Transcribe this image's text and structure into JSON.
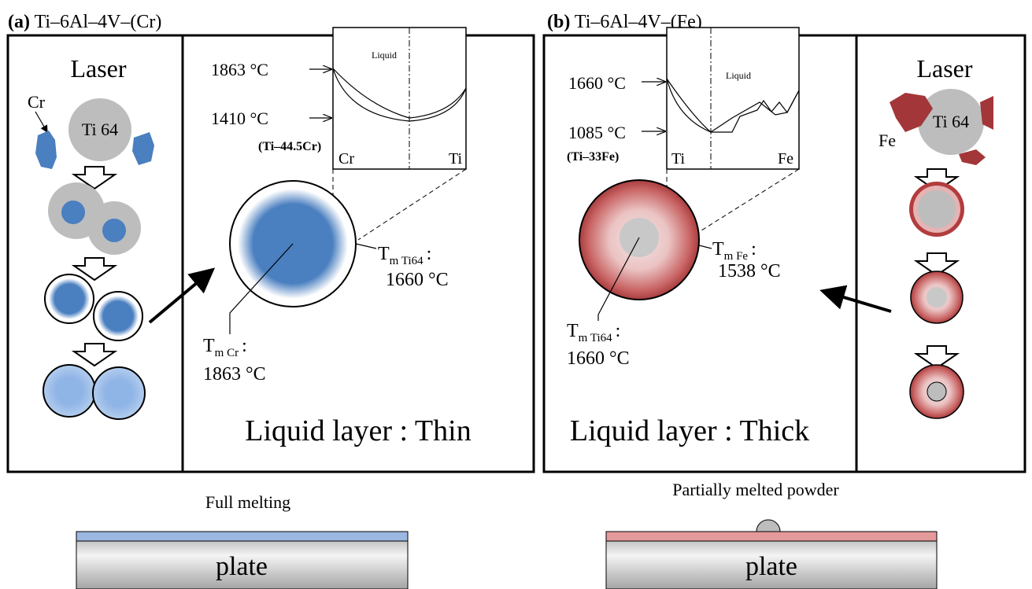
{
  "panel_a": {
    "label": "(a)",
    "title": "Ti–6Al–4V–(Cr)",
    "laser": "Laser",
    "powder_label": "Cr",
    "core_label": "Ti 64",
    "diagram": {
      "temp_high": "1863 °C",
      "temp_low": "1410 °C",
      "composition": "(Ti–44.5Cr)",
      "region": "Liquid",
      "axis_left": "Cr",
      "axis_right": "Ti"
    },
    "outer_melt": {
      "symbol": "T",
      "subscript": "m Ti64",
      "separator": ":",
      "temperature": "1660 °C"
    },
    "inner_melt": {
      "symbol": "T",
      "subscript": "m Cr",
      "separator": ":",
      "temperature": "1863 °C"
    },
    "liquid_layer": "Liquid layer : Thin",
    "result": "Full melting",
    "plate": "plate"
  },
  "panel_b": {
    "label": "(b)",
    "title": "Ti–6Al–4V–(Fe)",
    "laser": "Laser",
    "powder_label": "Fe",
    "core_label": "Ti 64",
    "diagram": {
      "temp_high": "1660 °C",
      "temp_low": "1085 °C",
      "composition": "(Ti–33Fe)",
      "region": "Liquid",
      "axis_left": "Ti",
      "axis_right": "Fe"
    },
    "outer_melt": {
      "symbol": "T",
      "subscript": "m Fe",
      "separator": ":",
      "temperature": "1538 °C"
    },
    "inner_melt": {
      "symbol": "T",
      "subscript": "m Ti64",
      "separator": ":",
      "temperature": "1660 °C"
    },
    "liquid_layer": "Liquid layer : Thick",
    "result": "Partially melted powder",
    "plate": "plate"
  }
}
